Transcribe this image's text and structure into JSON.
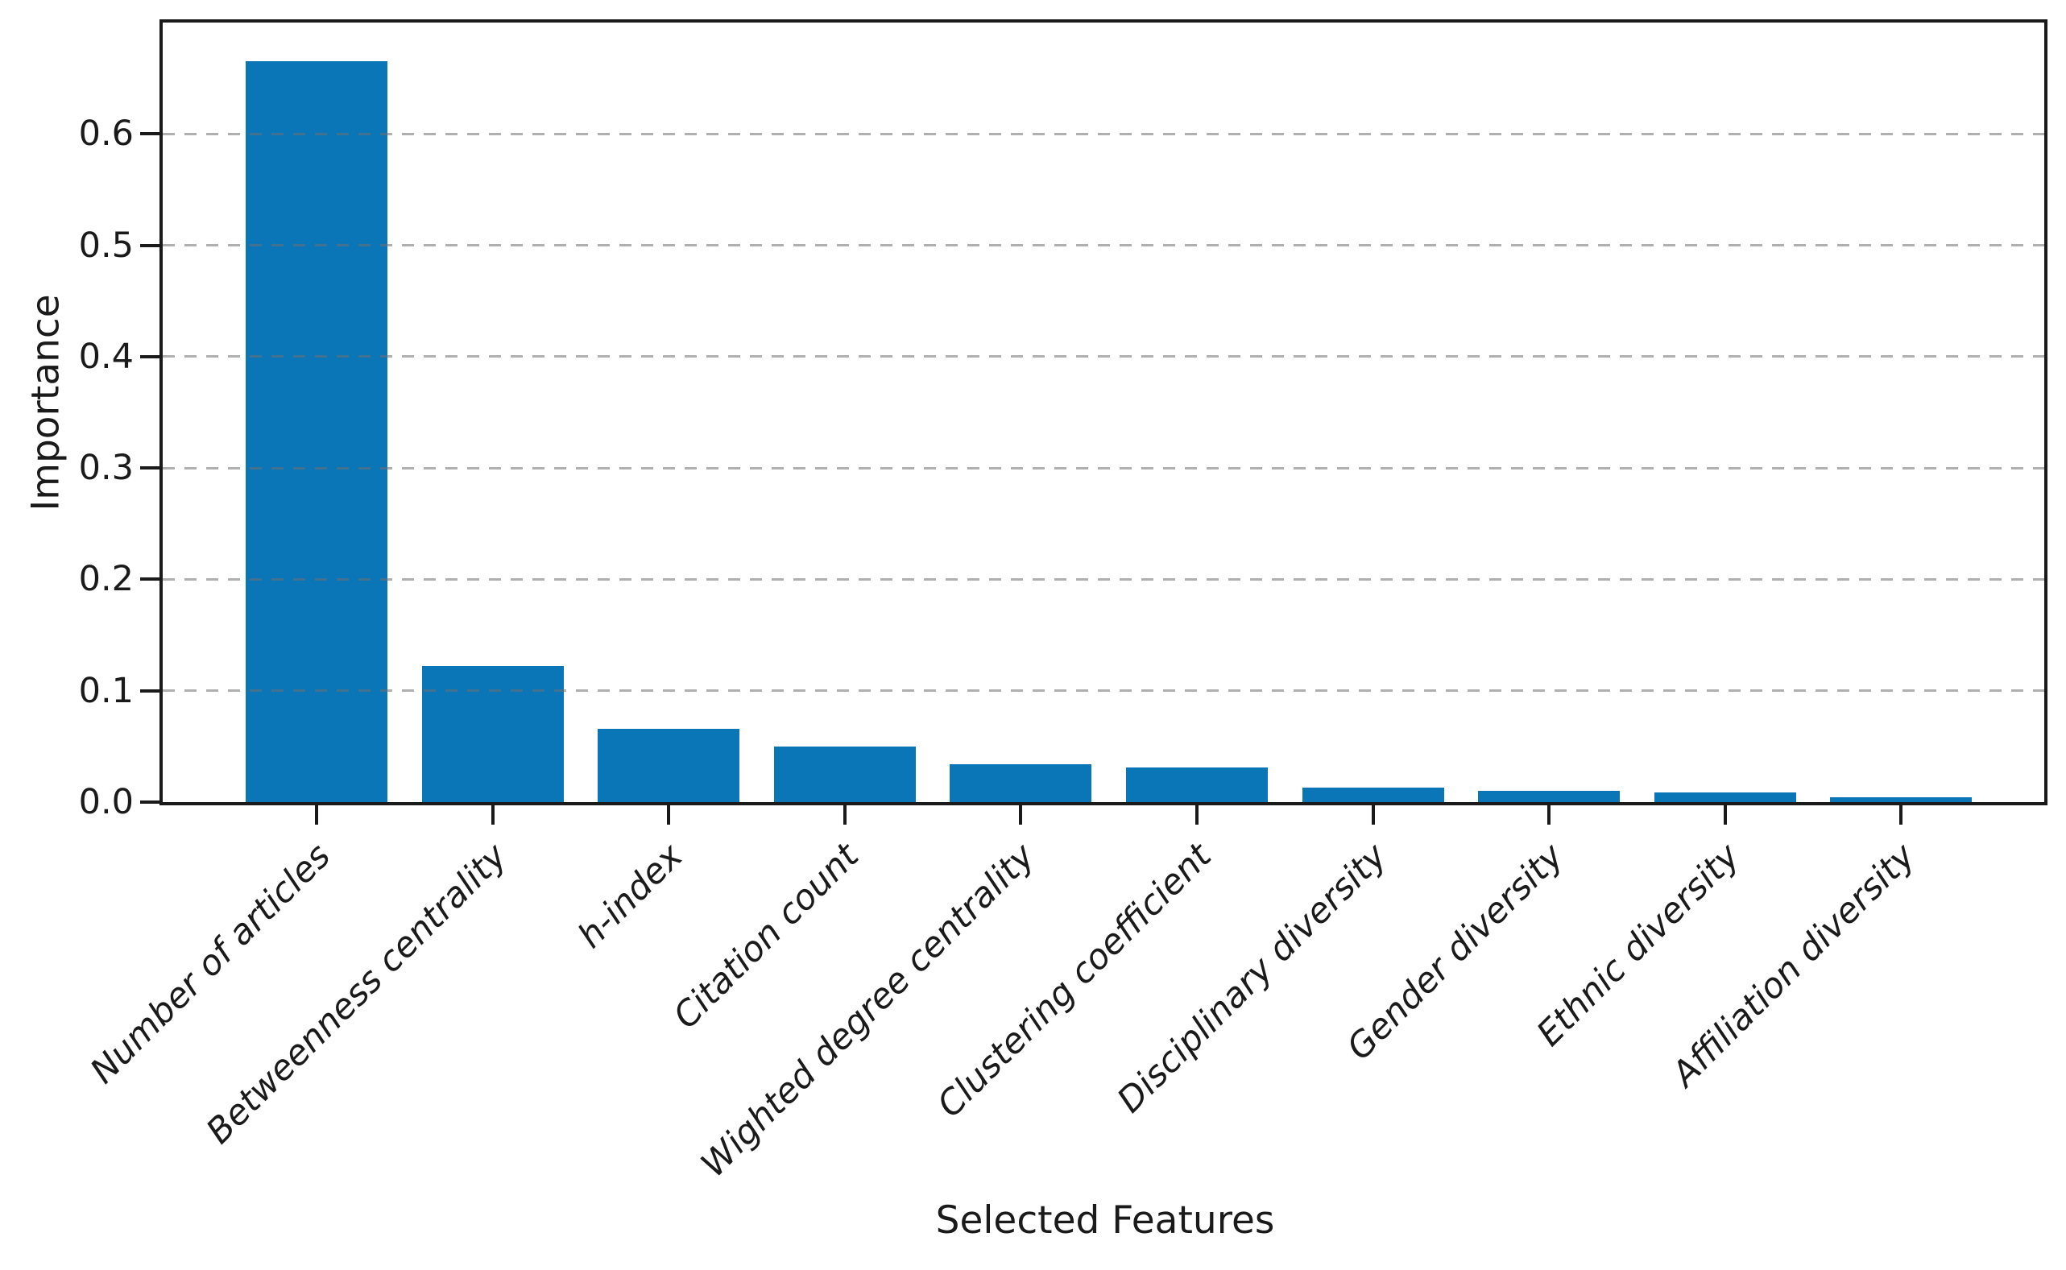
{
  "figure": {
    "background": "#ffffff"
  },
  "chart_data": {
    "type": "bar",
    "title": "",
    "xlabel": "Selected Features",
    "ylabel": "Importance",
    "categories": [
      "Number of articles",
      "Betweenness centrality",
      "h-index",
      "Citation count",
      "Wighted degree centrality",
      "Clustering coefficient",
      "Disciplinary diversity",
      "Gender diversity",
      "Ethnic diversity",
      "Affiliation diversity"
    ],
    "values": [
      0.665,
      0.122,
      0.066,
      0.05,
      0.034,
      0.031,
      0.013,
      0.01,
      0.009,
      0.004
    ],
    "ylim": [
      0,
      0.7
    ],
    "yticks": [
      0.0,
      0.1,
      0.2,
      0.3,
      0.4,
      0.5,
      0.6
    ],
    "ytick_labels": [
      "0.0",
      "0.1",
      "0.2",
      "0.3",
      "0.4",
      "0.5",
      "0.6"
    ],
    "grid": "horizontal dashed lines at y ticks, drawn over bars",
    "legend_position": "none",
    "bar_color": "#0b76b7",
    "axis_color": "#1a1a1a",
    "grid_color": "#8c8c8c",
    "xtick_label_style": "italic, rotated 45deg, right-anchored"
  }
}
